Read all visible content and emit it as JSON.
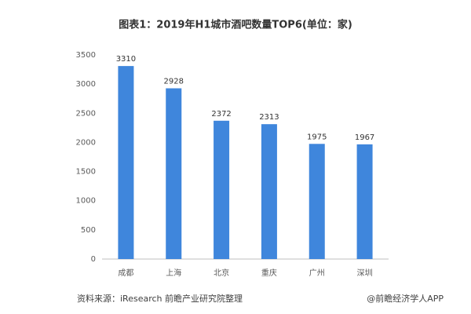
{
  "chart_data": {
    "type": "bar",
    "title": "图表1：2019年H1城市酒吧数量TOP6(单位：家)",
    "categories": [
      "成都",
      "上海",
      "北京",
      "重庆",
      "广州",
      "深圳"
    ],
    "values": [
      3310,
      2928,
      2372,
      2313,
      1975,
      1967
    ],
    "color": "#3f86dc",
    "ylim": [
      0,
      3500
    ],
    "yticks": [
      0,
      500,
      1000,
      1500,
      2000,
      2500,
      3000,
      3500
    ],
    "grid": false,
    "source": "资料来源：iResearch 前瞻产业研究院整理",
    "credit": "@前瞻经济学人APP"
  }
}
